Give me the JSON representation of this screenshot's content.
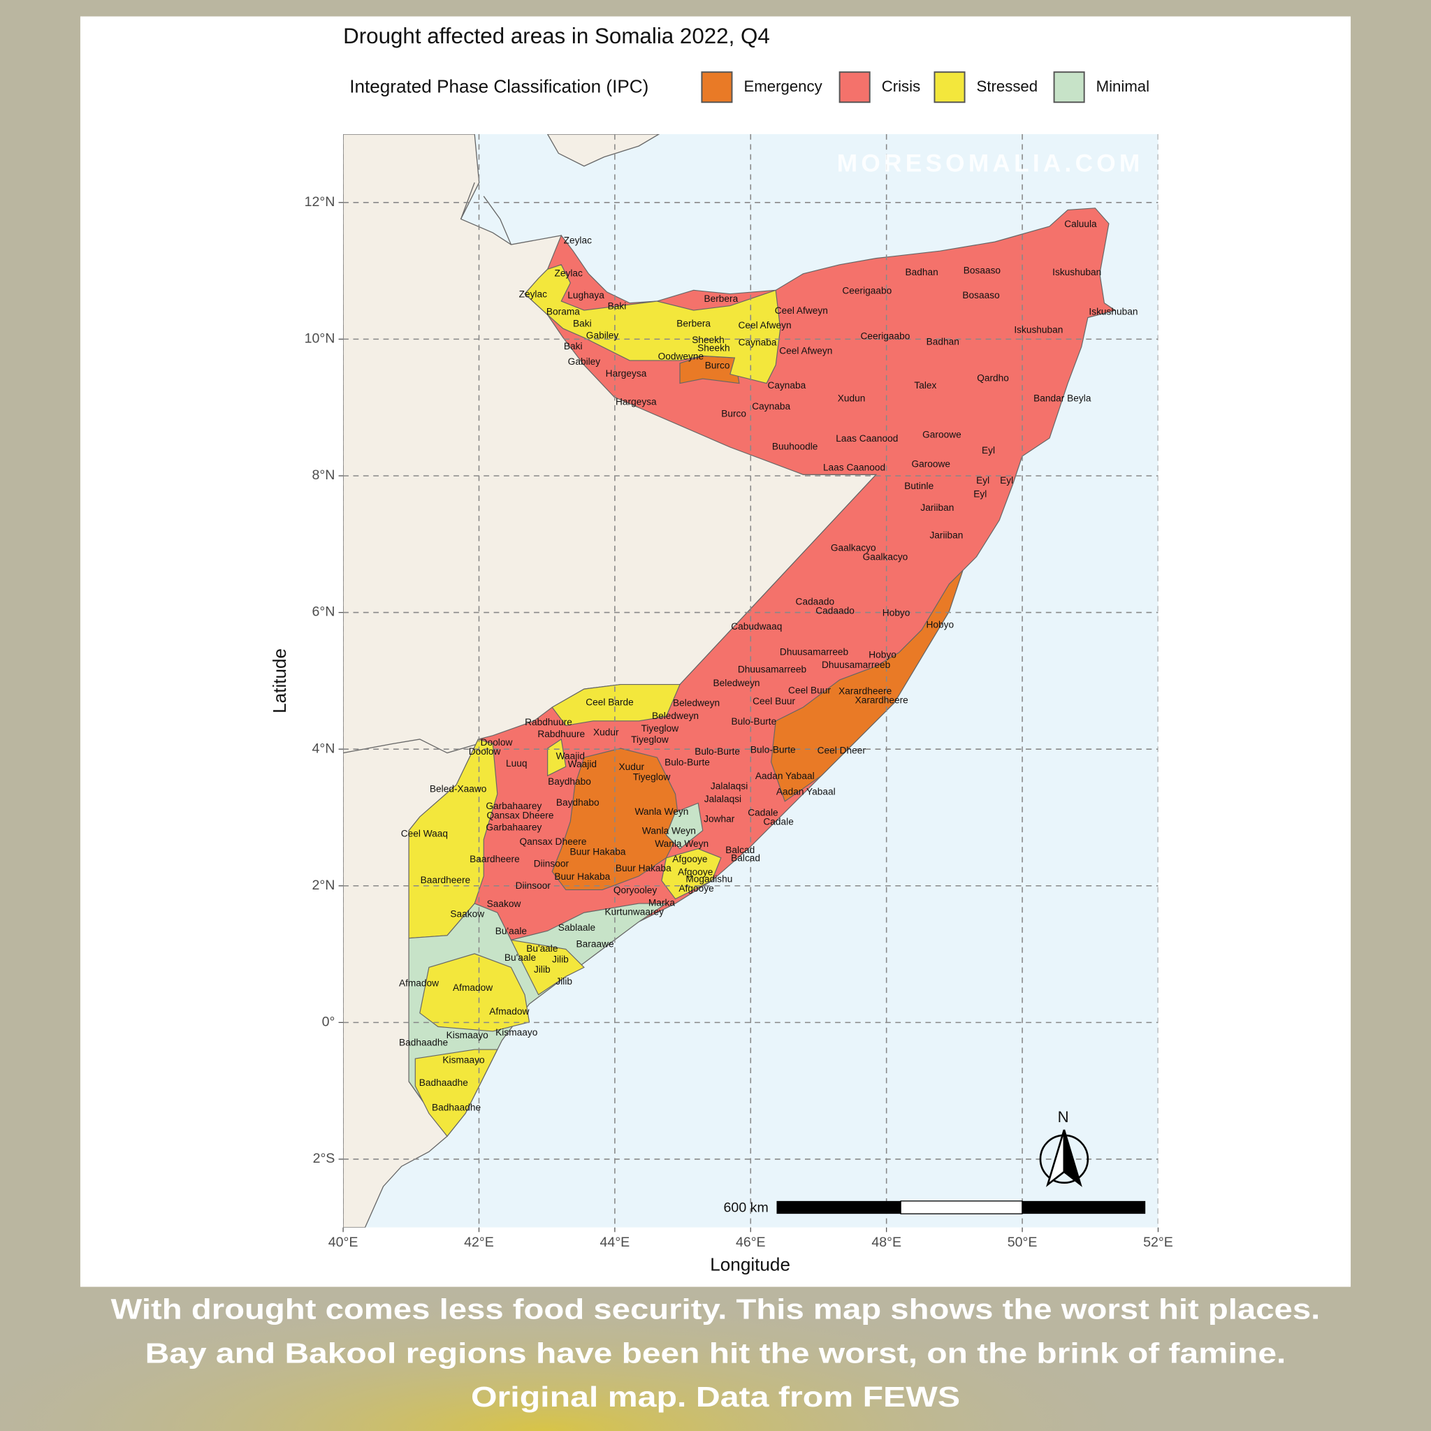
{
  "title": "Drought affected areas in Somalia 2022, Q4",
  "legend": {
    "title": "Integrated Phase Classification (IPC)",
    "items": [
      {
        "name": "Emergency",
        "color": "#e97a26"
      },
      {
        "name": "Crisis",
        "color": "#f4726b"
      },
      {
        "name": "Stressed",
        "color": "#f3e73c"
      },
      {
        "name": "Minimal",
        "color": "#c7e3c8"
      }
    ]
  },
  "map": {
    "xlim": [
      40,
      52
    ],
    "ylim": [
      -3,
      13
    ],
    "xticks": [
      {
        "value": 40,
        "label": "40°E"
      },
      {
        "value": 42,
        "label": "42°E"
      },
      {
        "value": 44,
        "label": "44°E"
      },
      {
        "value": 46,
        "label": "46°E"
      },
      {
        "value": 48,
        "label": "48°E"
      },
      {
        "value": 50,
        "label": "50°E"
      },
      {
        "value": 52,
        "label": "52°E"
      }
    ],
    "yticks": [
      {
        "value": -2,
        "label": "2°S"
      },
      {
        "value": 0,
        "label": "0°"
      },
      {
        "value": 2,
        "label": "2°N"
      },
      {
        "value": 4,
        "label": "4°N"
      },
      {
        "value": 6,
        "label": "6°N"
      },
      {
        "value": 8,
        "label": "8°N"
      },
      {
        "value": 10,
        "label": "10°N"
      },
      {
        "value": 12,
        "label": "12°N"
      }
    ],
    "grid": true,
    "x_label": "Longitude",
    "y_label": "Latitude",
    "scale_bar": "600 km",
    "north": "N",
    "places": [
      "Zeylac",
      "Zeylac",
      "Zeylac",
      "Lughaya",
      "Borama",
      "Baki",
      "Baki",
      "Baki",
      "Gabiley",
      "Gabiley",
      "Hargeysa",
      "Hargeysa",
      "Berbera",
      "Berbera",
      "Oodweyne",
      "Sheekh",
      "Sheekh",
      "Burco",
      "Burco",
      "Caynaba",
      "Caynaba",
      "Caynaba",
      "Ceel Afweyn",
      "Ceel Afweyn",
      "Ceel Afweyn",
      "Ceerigaabo",
      "Ceerigaabo",
      "Badhan",
      "Badhan",
      "Bosaaso",
      "Bosaaso",
      "Caluula",
      "Iskushuban",
      "Iskushuban",
      "Iskushuban",
      "Qardho",
      "Bandar Beyla",
      "Talex",
      "Xudun",
      "Buuhoodle",
      "Laas Caanood",
      "Laas Caanood",
      "Garoowe",
      "Garoowe",
      "Eyl",
      "Eyl",
      "Eyl",
      "Eyl",
      "Butinle",
      "Jariiban",
      "Jariiban",
      "Gaalkacyo",
      "Gaalkacyo",
      "Cadaado",
      "Cadaado",
      "Hobyo",
      "Hobyo",
      "Hobyo",
      "Cabudwaaq",
      "Dhuusamarreeb",
      "Dhuusamarreeb",
      "Dhuusamarreeb",
      "Beledweyn",
      "Beledweyn",
      "Beledweyn",
      "Ceel Buur",
      "Ceel Buur",
      "Xarardheere",
      "Xarardheere",
      "Bulo-Burte",
      "Bulo-Burte",
      "Bulo-Burte",
      "Bulo-Burte",
      "Ceel Dheer",
      "Aadan Yabaal",
      "Aadan Yabaal",
      "Jalalaqsi",
      "Jalalaqsi",
      "Jowhar",
      "Cadale",
      "Cadale",
      "Balcad",
      "Balcad",
      "Mogadishu",
      "Afgooye",
      "Afgooye",
      "Afgooye",
      "Wanla Weyn",
      "Wanla Weyn",
      "Wanla Weyn",
      "Buur Hakaba",
      "Buur Hakaba",
      "Buur Hakaba",
      "Qoryooley",
      "Kurtunwaarey",
      "Marka",
      "Sablaale",
      "Baraawe",
      "Ceel Barde",
      "Rabdhuure",
      "Rabdhuure",
      "Xudur",
      "Xudur",
      "Tiyeglow",
      "Tiyeglow",
      "Tiyeglow",
      "Waajid",
      "Waajid",
      "Baydhabo",
      "Baydhabo",
      "Doolow",
      "Doolow",
      "Luuq",
      "Beled-Xaawo",
      "Garbahaarey",
      "Garbahaarey",
      "Qansax Dheere",
      "Qansax Dheere",
      "Ceel Waaq",
      "Baardheere",
      "Baardheere",
      "Diinsoor",
      "Diinsoor",
      "Saakow",
      "Saakow",
      "Bu'aale",
      "Bu'aale",
      "Bu'aale",
      "Jilib",
      "Jilib",
      "Jilib",
      "Afmadow",
      "Afmadow",
      "Afmadow",
      "Kismaayo",
      "Kismaayo",
      "Kismaayo",
      "Badhaadhe",
      "Badhaadhe",
      "Badhaadhe"
    ]
  },
  "watermark": "MORESOMALIA.COM",
  "caption": [
    "With drought comes less food security. This map shows the worst hit places.",
    "Bay and Bakool regions have been hit the worst, on the brink of famine.",
    "Original map. Data from FEWS"
  ]
}
